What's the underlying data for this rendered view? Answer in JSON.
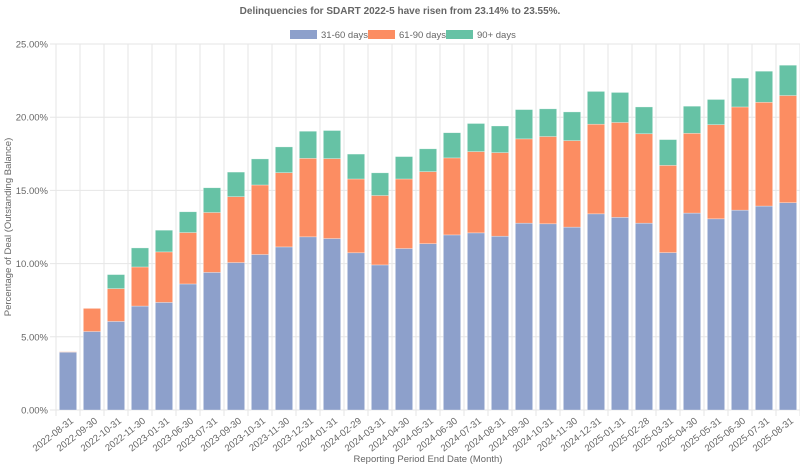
{
  "chart_data": {
    "type": "bar",
    "stacked": true,
    "title": "Delinquencies for SDART 2022-5 have risen from 23.14% to 23.55%.",
    "xlabel": "Reporting Period End Date (Month)",
    "ylabel": "Percentage of Deal (Outstanding Balance)",
    "ylim": [
      0,
      25
    ],
    "yticks": [
      "0.00%",
      "5.00%",
      "10.00%",
      "15.00%",
      "20.00%",
      "25.00%"
    ],
    "ytick_values": [
      0,
      5,
      10,
      15,
      20,
      25
    ],
    "grid": true,
    "legend_position": "top-center",
    "categories": [
      "2022-08-31",
      "2022-09-30",
      "2022-10-31",
      "2022-11-30",
      "2023-01-31",
      "2023-06-30",
      "2023-07-31",
      "2023-09-30",
      "2023-10-31",
      "2023-11-30",
      "2023-12-31",
      "2024-01-31",
      "2024-02-29",
      "2024-03-31",
      "2024-04-30",
      "2024-05-31",
      "2024-06-30",
      "2024-07-31",
      "2024-08-31",
      "2024-09-30",
      "2024-10-31",
      "2024-11-30",
      "2024-12-31",
      "2025-01-31",
      "2025-02-28",
      "2025-03-31",
      "2025-04-30",
      "2025-05-31",
      "2025-06-30",
      "2025-07-31",
      "2025-08-31"
    ],
    "series": [
      {
        "name": "31-60 days",
        "color": "#8da0cb",
        "values": [
          3.95,
          5.36,
          6.05,
          7.1,
          7.35,
          8.61,
          9.4,
          10.07,
          10.62,
          11.14,
          11.83,
          11.71,
          10.74,
          9.91,
          11.03,
          11.36,
          11.96,
          12.1,
          11.87,
          12.76,
          12.72,
          12.49,
          13.4,
          13.16,
          12.76,
          10.75,
          13.45,
          13.06,
          13.65,
          13.93,
          14.16
        ]
      },
      {
        "name": "61-90 days",
        "color": "#fc8d62",
        "values": [
          0.03,
          1.58,
          2.24,
          2.67,
          3.45,
          3.51,
          4.09,
          4.5,
          4.75,
          5.07,
          5.36,
          5.46,
          5.04,
          4.74,
          4.75,
          4.92,
          5.26,
          5.55,
          5.71,
          5.76,
          5.96,
          5.91,
          6.12,
          6.48,
          6.11,
          5.96,
          5.45,
          6.43,
          7.05,
          7.09,
          7.32
        ]
      },
      {
        "name": "90+ days",
        "color": "#66c2a5",
        "values": [
          0.0,
          0.0,
          0.96,
          1.3,
          1.48,
          1.42,
          1.69,
          1.68,
          1.78,
          1.76,
          1.85,
          1.92,
          1.7,
          1.55,
          1.53,
          1.56,
          1.72,
          1.92,
          1.82,
          2.0,
          1.89,
          1.96,
          2.24,
          2.05,
          1.83,
          1.76,
          1.85,
          1.72,
          1.97,
          2.12,
          2.07
        ]
      }
    ]
  }
}
